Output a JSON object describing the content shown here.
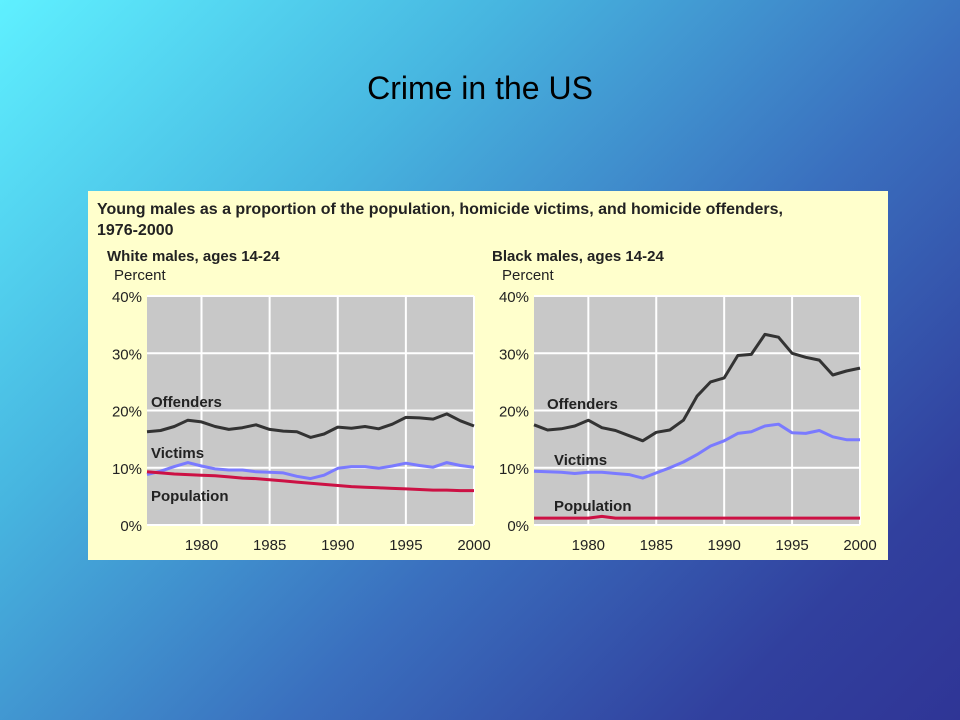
{
  "slide": {
    "title": "Crime in the US"
  },
  "figure": {
    "title": "Young males as a proportion of the population, homicide victims, and homicide offenders, 1976-2000"
  },
  "colors": {
    "background_top": "#5ff0ff",
    "background_bottom": "#2f3596",
    "panel": "#ffffcc",
    "plot_area": "#c8c8c8",
    "gridline": "#ffffff",
    "offenders": "#333333",
    "victims": "#7a7aff",
    "population": "#cc1144"
  },
  "chart_data": [
    {
      "type": "line",
      "title": "White males, ages 14-24",
      "ylabel": "Percent",
      "xlim": [
        1976,
        2000
      ],
      "ylim": [
        0,
        40
      ],
      "x_ticks": [
        "1980",
        "1985",
        "1990",
        "1995",
        "2000"
      ],
      "y_ticks": [
        "0%",
        "10%",
        "20%",
        "30%",
        "40%"
      ],
      "grid": true,
      "x": [
        1976,
        1977,
        1978,
        1979,
        1980,
        1981,
        1982,
        1983,
        1984,
        1985,
        1986,
        1987,
        1988,
        1989,
        1990,
        1991,
        1992,
        1993,
        1994,
        1995,
        1996,
        1997,
        1998,
        1999,
        2000
      ],
      "series": [
        {
          "name": "Offenders",
          "values": [
            16.3,
            16.5,
            17.2,
            18.3,
            18.0,
            17.2,
            16.7,
            17.0,
            17.5,
            16.7,
            16.4,
            16.3,
            15.3,
            15.9,
            17.1,
            16.9,
            17.2,
            16.8,
            17.6,
            18.8,
            18.7,
            18.5,
            19.4,
            18.2,
            17.3
          ]
        },
        {
          "name": "Victims",
          "values": [
            8.8,
            9.4,
            10.2,
            10.9,
            10.3,
            9.8,
            9.6,
            9.6,
            9.3,
            9.2,
            9.1,
            8.5,
            8.1,
            8.7,
            9.9,
            10.2,
            10.2,
            9.9,
            10.3,
            10.8,
            10.4,
            10.1,
            10.9,
            10.4,
            10.1
          ]
        },
        {
          "name": "Population",
          "values": [
            9.3,
            9.1,
            8.9,
            8.8,
            8.7,
            8.6,
            8.4,
            8.2,
            8.1,
            7.9,
            7.7,
            7.5,
            7.3,
            7.1,
            6.9,
            6.7,
            6.6,
            6.5,
            6.4,
            6.3,
            6.2,
            6.1,
            6.1,
            6.0,
            6.0
          ]
        }
      ]
    },
    {
      "type": "line",
      "title": "Black males, ages 14-24",
      "ylabel": "Percent",
      "xlim": [
        1976,
        2000
      ],
      "ylim": [
        0,
        40
      ],
      "x_ticks": [
        "1980",
        "1985",
        "1990",
        "1995",
        "2000"
      ],
      "y_ticks": [
        "0%",
        "10%",
        "20%",
        "30%",
        "40%"
      ],
      "grid": true,
      "x": [
        1976,
        1977,
        1978,
        1979,
        1980,
        1981,
        1982,
        1983,
        1984,
        1985,
        1986,
        1987,
        1988,
        1989,
        1990,
        1991,
        1992,
        1993,
        1994,
        1995,
        1996,
        1997,
        1998,
        1999,
        2000
      ],
      "series": [
        {
          "name": "Offenders",
          "values": [
            17.5,
            16.6,
            16.8,
            17.3,
            18.3,
            17.0,
            16.5,
            15.6,
            14.7,
            16.2,
            16.6,
            18.3,
            22.5,
            25.0,
            25.7,
            29.6,
            29.8,
            33.3,
            32.8,
            30.0,
            29.3,
            28.8,
            26.2,
            26.9,
            27.4
          ]
        },
        {
          "name": "Victims",
          "values": [
            9.4,
            9.3,
            9.2,
            9.0,
            9.2,
            9.2,
            9.0,
            8.8,
            8.2,
            9.1,
            10.0,
            11.0,
            12.3,
            13.8,
            14.7,
            16.0,
            16.3,
            17.3,
            17.6,
            16.1,
            16.0,
            16.5,
            15.4,
            14.9,
            14.9
          ]
        },
        {
          "name": "Population",
          "values": [
            1.2,
            1.2,
            1.2,
            1.2,
            1.2,
            1.5,
            1.2,
            1.2,
            1.2,
            1.2,
            1.2,
            1.2,
            1.2,
            1.2,
            1.2,
            1.2,
            1.2,
            1.2,
            1.2,
            1.2,
            1.2,
            1.2,
            1.2,
            1.2,
            1.2
          ]
        }
      ]
    }
  ]
}
